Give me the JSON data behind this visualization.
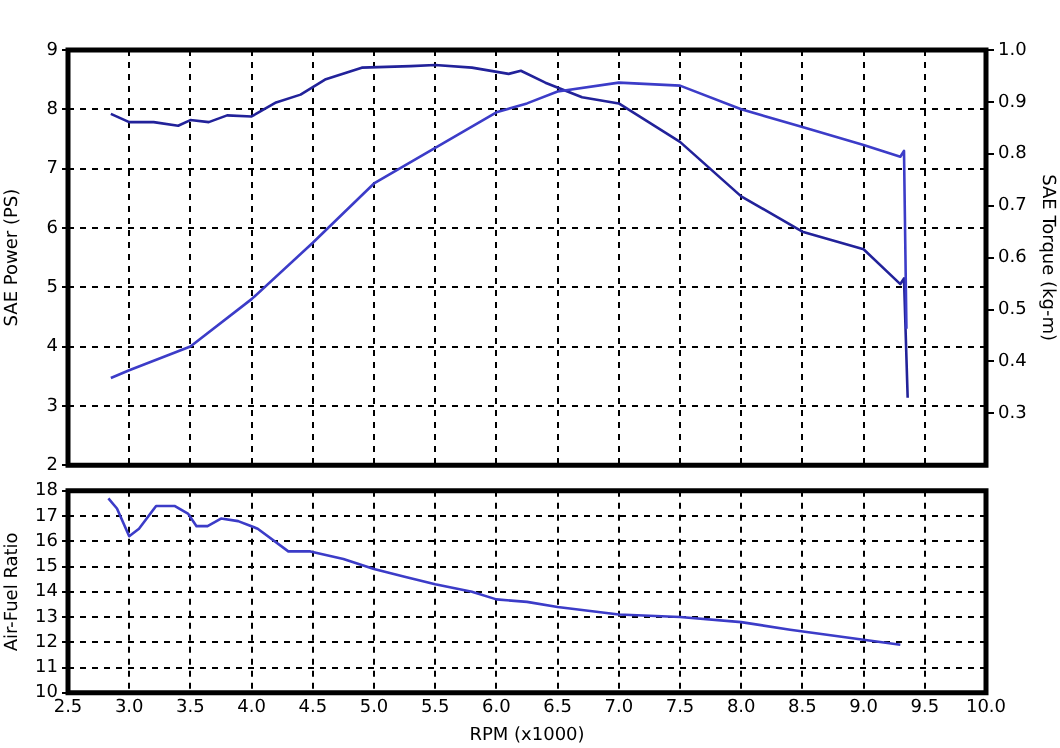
{
  "chart_data": [
    {
      "type": "line",
      "ylabel": "SAE Power (PS)",
      "y2label": "SAE Torque (kg-m)",
      "xlim": [
        2.5,
        10
      ],
      "xticks": [
        3,
        3.5,
        4,
        4.5,
        5,
        5.5,
        6,
        6.5,
        7,
        7.5,
        8,
        8.5,
        9,
        9.5
      ],
      "ylim": [
        2,
        9
      ],
      "yticks": [
        2,
        3,
        4,
        5,
        6,
        7,
        8,
        9
      ],
      "y2lim": [
        0.2,
        1.0
      ],
      "y2ticks": [
        0.3,
        0.4,
        0.5,
        0.6,
        0.7,
        0.8,
        0.9,
        {
          "value": 1.0,
          "label": "1.0"
        }
      ],
      "tick_labels": "y",
      "grid": true,
      "marker": "none",
      "legend": false,
      "series": [
        {
          "color": "#3c3cc8",
          "x": [
            2.85,
            3.0,
            3.5,
            4.0,
            4.5,
            5.0,
            5.5,
            6.0,
            6.25,
            6.5,
            7.0,
            7.5,
            8.0,
            8.5,
            9.0,
            9.3,
            9.33,
            9.35
          ],
          "values": [
            3.47,
            3.6,
            4.0,
            4.8,
            5.75,
            6.75,
            7.35,
            7.95,
            8.1,
            8.3,
            8.45,
            8.4,
            8.0,
            7.7,
            7.4,
            7.2,
            7.3,
            4.3
          ]
        },
        {
          "color": "#22229a",
          "axis": "y2",
          "x": [
            2.85,
            3.0,
            3.2,
            3.4,
            3.5,
            3.65,
            3.8,
            4.0,
            4.2,
            4.4,
            4.6,
            4.9,
            5.3,
            5.5,
            5.8,
            6.1,
            6.2,
            6.4,
            6.7,
            7.0,
            7.5,
            8.0,
            8.5,
            9.0,
            9.3,
            9.33,
            9.36
          ],
          "values": [
            0.877,
            0.861,
            0.861,
            0.854,
            0.865,
            0.861,
            0.874,
            0.872,
            0.899,
            0.914,
            0.943,
            0.966,
            0.969,
            0.971,
            0.966,
            0.954,
            0.96,
            0.937,
            0.909,
            0.897,
            0.823,
            0.718,
            0.65,
            0.616,
            0.549,
            0.56,
            0.33
          ]
        }
      ]
    },
    {
      "type": "line",
      "ylabel": "Air-Fuel Ratio",
      "xlabel": "RPM (x1000)",
      "xlim": [
        2.5,
        10
      ],
      "xticks": [
        2.5,
        {
          "value": 3,
          "label": "3.0"
        },
        3.5,
        {
          "value": 4,
          "label": "4.0"
        },
        4.5,
        {
          "value": 5,
          "label": "5.0"
        },
        5.5,
        {
          "value": 6,
          "label": "6.0"
        },
        6.5,
        {
          "value": 7,
          "label": "7.0"
        },
        7.5,
        {
          "value": 8,
          "label": "8.0"
        },
        8.5,
        {
          "value": 9,
          "label": "9.0"
        },
        9.5,
        {
          "value": 10,
          "label": "10.0"
        }
      ],
      "ylim": [
        10,
        18
      ],
      "yticks": [
        10,
        11,
        12,
        13,
        14,
        15,
        16,
        17,
        18
      ],
      "grid": true,
      "marker": "none",
      "legend": false,
      "series": [
        {
          "color": "#3c3cc8",
          "x": [
            2.83,
            2.9,
            3.0,
            3.08,
            3.22,
            3.37,
            3.48,
            3.55,
            3.64,
            3.75,
            3.89,
            4.05,
            4.3,
            4.48,
            4.75,
            5.0,
            5.25,
            5.5,
            5.8,
            6.0,
            6.25,
            6.5,
            7.0,
            7.5,
            8.0,
            8.4,
            9.0,
            9.3
          ],
          "values": [
            17.7,
            17.3,
            16.2,
            16.5,
            17.4,
            17.4,
            17.1,
            16.6,
            16.6,
            16.9,
            16.8,
            16.5,
            15.6,
            15.6,
            15.3,
            14.9,
            14.6,
            14.3,
            14.0,
            13.7,
            13.6,
            13.4,
            13.1,
            13.0,
            12.8,
            12.5,
            12.1,
            11.9
          ]
        }
      ]
    }
  ]
}
